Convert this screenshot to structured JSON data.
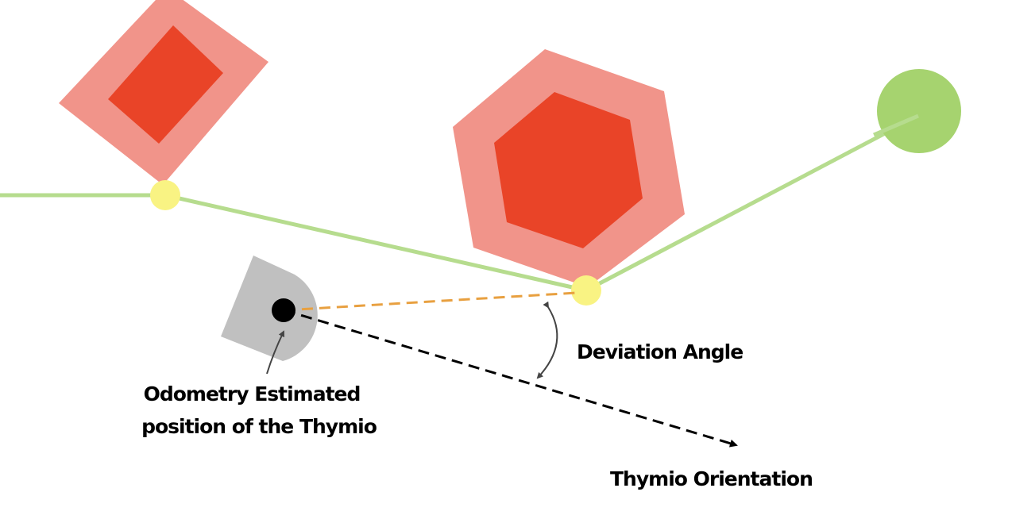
{
  "labels": {
    "deviation_angle": "Deviation Angle",
    "odometry_line1": "Odometry Estimated",
    "odometry_line2": "position of the Thymio",
    "thymio_orientation": "Thymio Orientation"
  },
  "colors": {
    "obstacle_margin": "#f1948a",
    "obstacle_core": "#e94428",
    "path": "#b6dc8e",
    "waypoint": "#f9f383",
    "goal": "#a6d36f",
    "robot_body": "#c0c0c0",
    "robot_center": "#000000",
    "deviation_line": "#e8a040",
    "orientation_arrow": "#000000",
    "annotation_arrow": "#444444"
  }
}
